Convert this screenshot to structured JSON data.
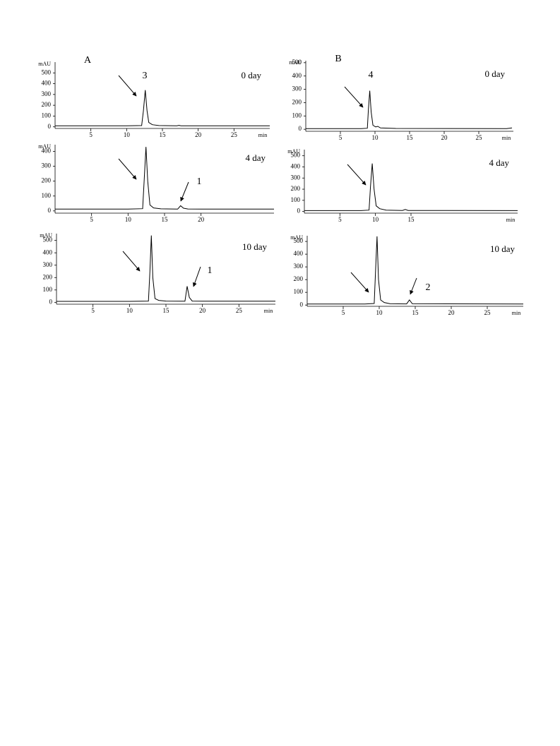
{
  "chart_data": [
    {
      "type": "line",
      "panel": "A",
      "title": "0 day",
      "y_label": "mAU",
      "x_label": "min",
      "color": "#000000",
      "x": [
        0,
        10,
        12.1,
        12.35,
        12.6,
        12.85,
        13.1,
        13.6,
        14.5,
        17,
        17.3,
        17.6,
        20,
        30
      ],
      "values": [
        10,
        10,
        12,
        150,
        340,
        150,
        40,
        20,
        12,
        10,
        14,
        10,
        10,
        9
      ],
      "xlim": [
        0,
        30
      ],
      "ylim": [
        -15,
        600
      ],
      "xticks": [
        5,
        10,
        15,
        20,
        25
      ],
      "yticks": [
        0,
        100,
        200,
        300,
        400,
        500
      ],
      "annotations": [
        "3"
      ]
    },
    {
      "type": "line",
      "title": "4 day",
      "y_label": "mAU",
      "color": "#000000",
      "x": [
        0,
        10,
        12.0,
        12.2,
        12.45,
        12.7,
        13.0,
        13.5,
        14.5,
        16.8,
        17.2,
        17.6,
        18.2,
        20,
        30
      ],
      "values": [
        12,
        12,
        15,
        200,
        430,
        200,
        40,
        20,
        14,
        12,
        35,
        18,
        13,
        12,
        12
      ],
      "xlim": [
        0,
        30
      ],
      "ylim": [
        -15,
        445
      ],
      "xticks": [
        5,
        10,
        15,
        20
      ],
      "yticks": [
        0,
        100,
        200,
        300,
        400
      ],
      "annotations": [
        "1"
      ]
    },
    {
      "type": "line",
      "title": "10 day",
      "y_label": "mAU",
      "x_label": "min",
      "color": "#000000",
      "x": [
        0,
        10,
        12.6,
        12.8,
        13.0,
        13.2,
        13.5,
        14,
        15,
        17.6,
        17.9,
        18.2,
        18.6,
        20,
        30
      ],
      "values": [
        8,
        8,
        10,
        250,
        540,
        200,
        30,
        16,
        10,
        9,
        130,
        40,
        10,
        9,
        9
      ],
      "xlim": [
        0,
        30
      ],
      "ylim": [
        -15,
        555
      ],
      "xticks": [
        5,
        10,
        15,
        20,
        25
      ],
      "yticks": [
        0,
        100,
        200,
        300,
        400,
        500
      ],
      "annotations": [
        "1"
      ]
    },
    {
      "type": "line",
      "panel": "B",
      "title": "0 day",
      "y_label": "mAU",
      "x_label": "min",
      "color": "#000000",
      "x": [
        0,
        8,
        8.9,
        9.05,
        9.25,
        9.45,
        9.7,
        10.1,
        10.4,
        10.8,
        13,
        29,
        29.8
      ],
      "values": [
        5,
        5,
        8,
        150,
        290,
        130,
        30,
        18,
        22,
        10,
        6,
        5,
        10
      ],
      "xlim": [
        0,
        30
      ],
      "ylim": [
        -15,
        515
      ],
      "xticks": [
        5,
        10,
        15,
        20,
        25
      ],
      "yticks": [
        0,
        100,
        200,
        300,
        400,
        500
      ],
      "annotations": [
        "4"
      ]
    },
    {
      "type": "line",
      "title": "4 day",
      "y_label": "mAU",
      "x_label": "min",
      "color": "#000000",
      "x": [
        0,
        8,
        9.1,
        9.3,
        9.55,
        9.8,
        10.1,
        10.6,
        11.5,
        13.8,
        14.2,
        14.6,
        30
      ],
      "values": [
        8,
        8,
        12,
        220,
        430,
        200,
        50,
        25,
        12,
        9,
        18,
        9,
        8
      ],
      "xlim": [
        0,
        30
      ],
      "ylim": [
        -15,
        555
      ],
      "xticks": [
        5,
        10,
        15
      ],
      "yticks": [
        0,
        100,
        200,
        300,
        400,
        500
      ]
    },
    {
      "type": "line",
      "title": "10 day",
      "y_label": "mAU",
      "x_label": "min",
      "color": "#000000",
      "x": [
        0,
        8,
        9.3,
        9.5,
        9.7,
        9.9,
        10.2,
        10.7,
        11.5,
        13.8,
        14.2,
        14.6,
        30
      ],
      "values": [
        8,
        8,
        12,
        280,
        540,
        200,
        40,
        20,
        10,
        9,
        40,
        10,
        8
      ],
      "xlim": [
        0,
        30
      ],
      "ylim": [
        -10,
        545
      ],
      "xticks": [
        5,
        10,
        15,
        20,
        25
      ],
      "yticks": [
        0,
        100,
        200,
        300,
        400,
        500
      ],
      "annotations": [
        "2"
      ]
    }
  ]
}
